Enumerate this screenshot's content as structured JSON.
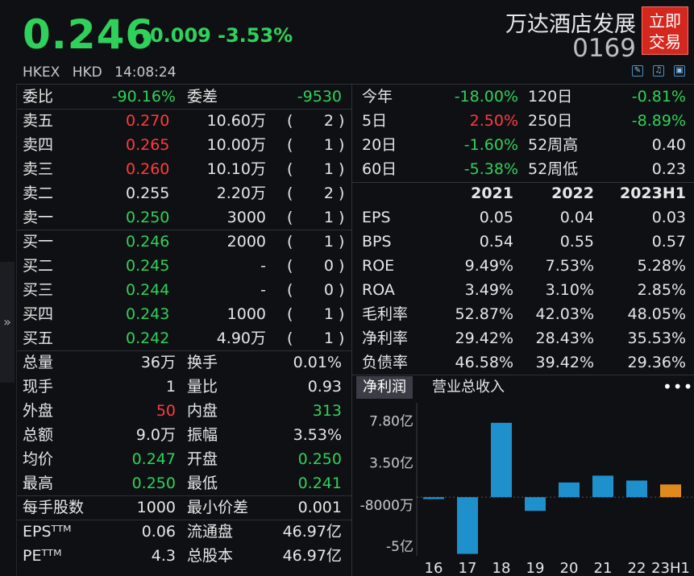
{
  "header": {
    "price": "0.246",
    "change": "-0.009",
    "change_pct": "-3.53%",
    "name": "万达酒店发展",
    "code": "0169",
    "trade_button": [
      "立即",
      "交易"
    ],
    "exchange": "HKEX",
    "currency": "HKD",
    "time": "14:08:24",
    "tool_icons": [
      "edit-icon",
      "bell-icon",
      "fullscreen-icon"
    ]
  },
  "order_book": {
    "ratio": {
      "label1": "委比",
      "value1": "-90.16%",
      "label2": "委差",
      "value2": "-9530"
    },
    "asks": [
      {
        "label": "卖五",
        "price": "0.270",
        "vol": "10.60万",
        "count": "2"
      },
      {
        "label": "卖四",
        "price": "0.265",
        "vol": "10.00万",
        "count": "1"
      },
      {
        "label": "卖三",
        "price": "0.260",
        "vol": "10.10万",
        "count": "1"
      },
      {
        "label": "卖二",
        "price": "0.255",
        "vol": "2.20万",
        "count": "2"
      },
      {
        "label": "卖一",
        "price": "0.250",
        "vol": "3000",
        "count": "1"
      }
    ],
    "bids": [
      {
        "label": "买一",
        "price": "0.246",
        "vol": "2000",
        "count": "1"
      },
      {
        "label": "买二",
        "price": "0.245",
        "vol": "-",
        "count": "0"
      },
      {
        "label": "买三",
        "price": "0.244",
        "vol": "-",
        "count": "0"
      },
      {
        "label": "买四",
        "price": "0.243",
        "vol": "1000",
        "count": "1"
      },
      {
        "label": "买五",
        "price": "0.242",
        "vol": "4.90万",
        "count": "1"
      }
    ]
  },
  "stats": [
    {
      "l1": "总量",
      "v1": "36万",
      "l2": "换手",
      "v2": "0.01%"
    },
    {
      "l1": "现手",
      "v1": "1",
      "l2": "量比",
      "v2": "0.93"
    },
    {
      "l1": "外盘",
      "v1": "50",
      "l2": "内盘",
      "v2": "313"
    },
    {
      "l1": "总额",
      "v1": "9.0万",
      "l2": "振幅",
      "v2": "3.53%"
    },
    {
      "l1": "均价",
      "v1": "0.247",
      "l2": "开盘",
      "v2": "0.250"
    },
    {
      "l1": "最高",
      "v1": "0.250",
      "l2": "最低",
      "v2": "0.241"
    },
    {
      "l1": "每手股数",
      "v1": "1000",
      "l2": "最小价差",
      "v2": "0.001"
    },
    {
      "l1": "EPSᵀᵀᴹ",
      "v1": "0.06",
      "l2": "流通盘",
      "v2": "46.97亿"
    },
    {
      "l1": "PEᵀᵀᴹ",
      "v1": "4.3",
      "l2": "总股本",
      "v2": "46.97亿"
    }
  ],
  "performance": [
    {
      "l1": "今年",
      "v1": "-18.00%",
      "l2": "120日",
      "v2": "-0.81%"
    },
    {
      "l1": "5日",
      "v1": "2.50%",
      "l2": "250日",
      "v2": "-8.89%"
    },
    {
      "l1": "20日",
      "v1": "-1.60%",
      "l2": "52周高",
      "v2": "0.40"
    },
    {
      "l1": "60日",
      "v1": "-5.38%",
      "l2": "52周低",
      "v2": "0.23"
    }
  ],
  "financials": {
    "years": [
      "2021",
      "2022",
      "2023H1"
    ],
    "rows": [
      {
        "label": "EPS",
        "values": [
          "0.05",
          "0.04",
          "0.03"
        ]
      },
      {
        "label": "BPS",
        "values": [
          "0.54",
          "0.55",
          "0.57"
        ]
      },
      {
        "label": "ROE",
        "values": [
          "9.49%",
          "7.53%",
          "5.28%"
        ]
      },
      {
        "label": "ROA",
        "values": [
          "3.49%",
          "3.10%",
          "2.85%"
        ]
      },
      {
        "label": "毛利率",
        "values": [
          "52.87%",
          "42.03%",
          "48.05%"
        ]
      },
      {
        "label": "净利率",
        "values": [
          "29.42%",
          "28.43%",
          "35.53%"
        ]
      },
      {
        "label": "负债率",
        "values": [
          "46.58%",
          "39.42%",
          "29.36%"
        ]
      }
    ]
  },
  "chart_tabs": {
    "active": "净利润",
    "other": "营业总收入",
    "more": "•••"
  },
  "colors": {
    "up": "#ff3b3b",
    "down": "#2fd15a",
    "bar": "#1e90cc",
    "bar_latest": "#e08a1e"
  },
  "chart_data": {
    "type": "bar",
    "categories": [
      "16",
      "17",
      "18",
      "19",
      "20",
      "21",
      "22",
      "23H1"
    ],
    "values": [
      -0.2,
      -5.8,
      7.6,
      -1.4,
      1.5,
      2.2,
      1.7,
      1.3
    ],
    "unit": "亿",
    "yticks": [
      "7.80亿",
      "3.50亿",
      "-8000万",
      "-5亿"
    ],
    "ylim": [
      -6,
      8
    ]
  }
}
